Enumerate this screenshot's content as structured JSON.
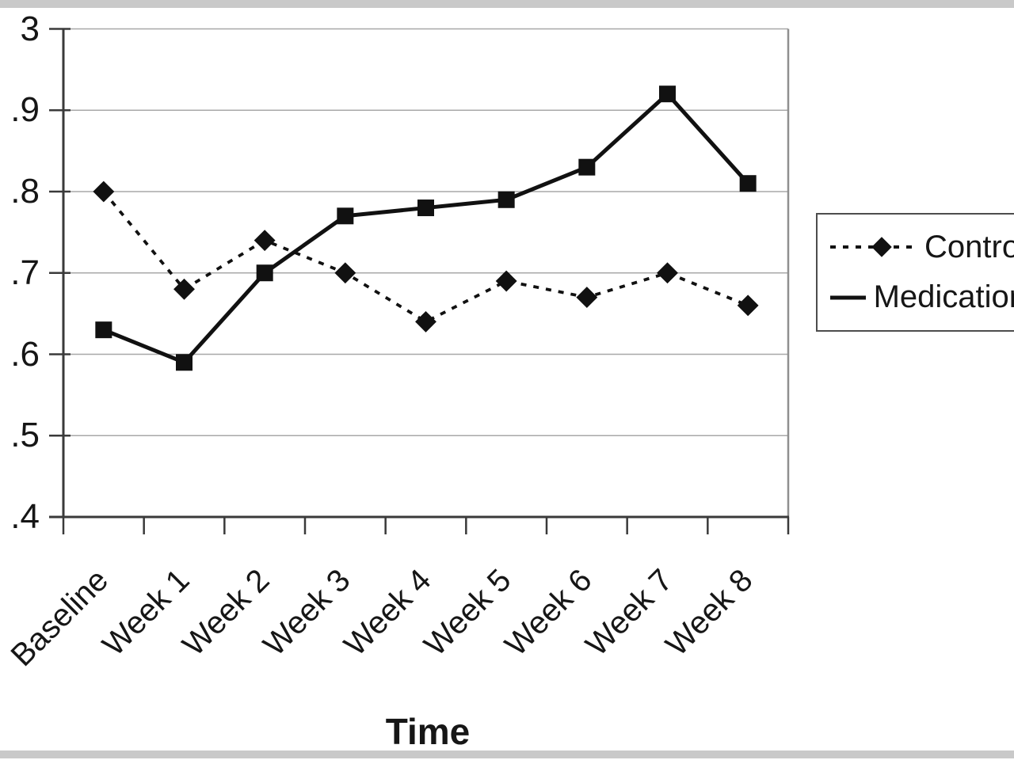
{
  "frame": {
    "background": "#ffffff",
    "bar_color": "#c9c9c9"
  },
  "chart_data": {
    "type": "line",
    "title": "",
    "xlabel": "Time",
    "ylabel": "",
    "categories": [
      "Baseline",
      "Week 1",
      "Week 2",
      "Week 3",
      "Week 4",
      "Week 5",
      "Week 6",
      "Week 7",
      "Week 8"
    ],
    "series": [
      {
        "name": "Control",
        "marker": "diamond",
        "line_style": "dotted",
        "color": "#111111",
        "values": [
          2.8,
          2.68,
          2.74,
          2.7,
          2.64,
          2.69,
          2.67,
          2.7,
          2.66
        ]
      },
      {
        "name": "Medication",
        "marker": "square",
        "line_style": "solid",
        "color": "#111111",
        "values": [
          2.63,
          2.59,
          2.7,
          2.77,
          2.78,
          2.79,
          2.83,
          2.92,
          2.81
        ]
      }
    ],
    "ylim": [
      2.4,
      3.0
    ],
    "ytick_step": 0.1,
    "ytick_labels_visible": [
      "3",
      ".9",
      ".8",
      ".7",
      ".6",
      ".5",
      ".4"
    ],
    "grid": true,
    "grid_color": "#a8a8a8",
    "axis_color": "#3a3a3a",
    "legend_position": "right"
  }
}
